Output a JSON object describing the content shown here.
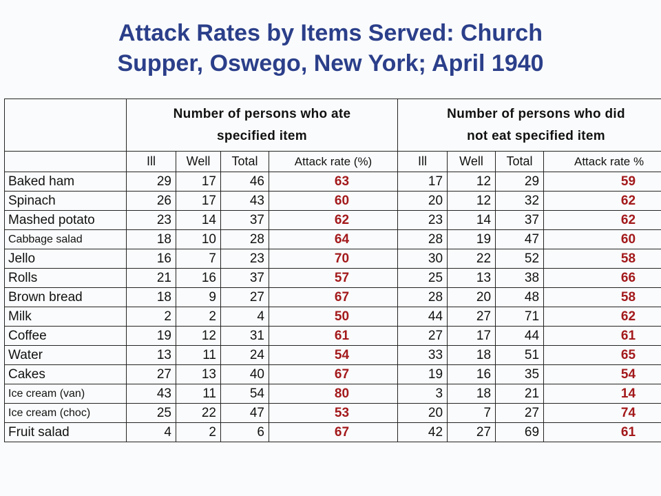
{
  "title": {
    "line1": "Attack Rates by Items Served: Church",
    "line2": "Supper, Oswego, New York; April 1940"
  },
  "headers": {
    "ate_group": [
      "Number of persons who ate",
      "specified item"
    ],
    "not_ate_group": [
      "Number of persons who did",
      "not eat specified item"
    ],
    "ate_cols": [
      "Ill",
      "Well",
      "Total",
      "Attack rate (%)"
    ],
    "not_ate_cols": [
      "Ill",
      "Well",
      "Total",
      "Attack rate %"
    ]
  },
  "rows": [
    {
      "item": "Baked ham",
      "ate": [
        "29",
        "17",
        "46",
        "63"
      ],
      "not_ate": [
        "17",
        "12",
        "29",
        "59"
      ]
    },
    {
      "item": "Spinach",
      "ate": [
        "26",
        "17",
        "43",
        "60"
      ],
      "not_ate": [
        "20",
        "12",
        "32",
        "62"
      ]
    },
    {
      "item": "Mashed potato",
      "ate": [
        "23",
        "14",
        "37",
        "62"
      ],
      "not_ate": [
        "23",
        "14",
        "37",
        "62"
      ]
    },
    {
      "item": "Cabbage salad",
      "ate": [
        "18",
        "10",
        "28",
        "64"
      ],
      "not_ate": [
        "28",
        "19",
        "47",
        "60"
      ]
    },
    {
      "item": "Jello",
      "ate": [
        "16",
        "7",
        "23",
        "70"
      ],
      "not_ate": [
        "30",
        "22",
        "52",
        "58"
      ]
    },
    {
      "item": "Rolls",
      "ate": [
        "21",
        "16",
        "37",
        "57"
      ],
      "not_ate": [
        "25",
        "13",
        "38",
        "66"
      ]
    },
    {
      "item": "Brown bread",
      "ate": [
        "18",
        "9",
        "27",
        "67"
      ],
      "not_ate": [
        "28",
        "20",
        "48",
        "58"
      ]
    },
    {
      "item": "Milk",
      "ate": [
        "2",
        "2",
        "4",
        "50"
      ],
      "not_ate": [
        "44",
        "27",
        "71",
        "62"
      ]
    },
    {
      "item": "Coffee",
      "ate": [
        "19",
        "12",
        "31",
        "61"
      ],
      "not_ate": [
        "27",
        "17",
        "44",
        "61"
      ]
    },
    {
      "item": "Water",
      "ate": [
        "13",
        "11",
        "24",
        "54"
      ],
      "not_ate": [
        "33",
        "18",
        "51",
        "65"
      ]
    },
    {
      "item": "Cakes",
      "ate": [
        "27",
        "13",
        "40",
        "67"
      ],
      "not_ate": [
        "19",
        "16",
        "35",
        "54"
      ]
    },
    {
      "item": "Ice cream (van)",
      "ate": [
        "43",
        "11",
        "54",
        "80"
      ],
      "not_ate": [
        "3",
        "18",
        "21",
        "14"
      ]
    },
    {
      "item": "Ice cream (choc)",
      "ate": [
        "25",
        "22",
        "47",
        "53"
      ],
      "not_ate": [
        "20",
        "7",
        "27",
        "74"
      ]
    },
    {
      "item": "Fruit salad",
      "ate": [
        "4",
        "2",
        "6",
        "67"
      ],
      "not_ate": [
        "42",
        "27",
        "69",
        "61"
      ]
    }
  ],
  "colors": {
    "title": "#2b3f8a",
    "attack_rate": "#a3191b",
    "text": "#111111",
    "background": "#fafbfc"
  }
}
